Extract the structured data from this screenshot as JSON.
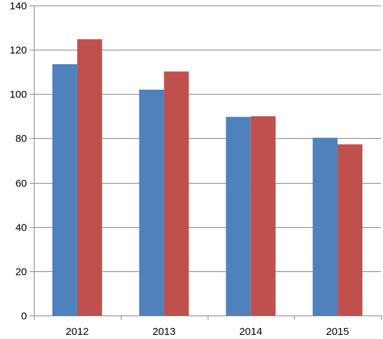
{
  "chart_data": {
    "type": "bar",
    "title": "",
    "xlabel": "",
    "ylabel": "",
    "categories": [
      "2012",
      "2013",
      "2014",
      "2015"
    ],
    "series": [
      {
        "color": "#4f81bd",
        "values": [
          113.5,
          102,
          89.7,
          80.3
        ]
      },
      {
        "color": "#c0504d",
        "values": [
          124.8,
          110.2,
          90,
          77.3
        ]
      }
    ],
    "ylim": [
      0,
      140
    ],
    "yticks": [
      0,
      20,
      40,
      60,
      80,
      100,
      120,
      140
    ],
    "ytick_labels": [
      "0",
      "20",
      "40",
      "60",
      "80",
      "100",
      "120",
      "140"
    ],
    "grid": true,
    "legend": "none",
    "colors": {
      "gridline": "#868686",
      "axis": "#868686"
    }
  }
}
